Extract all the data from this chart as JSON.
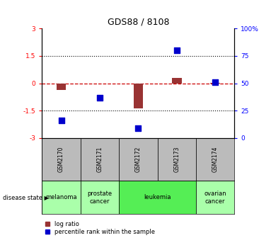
{
  "title": "GDS88 / 8108",
  "samples": [
    "GSM2170",
    "GSM2171",
    "GSM2172",
    "GSM2173",
    "GSM2174"
  ],
  "log_ratio": [
    -0.35,
    0.0,
    -1.38,
    0.28,
    0.03
  ],
  "percentile_rank": [
    16,
    37,
    9,
    80,
    51
  ],
  "disease_state": [
    "melanoma",
    "prostate cancer",
    "leukemia",
    "leukemia",
    "ovarian cancer"
  ],
  "disease_colors": {
    "melanoma": "#aaffaa",
    "prostate cancer": "#aaffaa",
    "leukemia": "#55ee55",
    "ovarian cancer": "#aaffaa"
  },
  "ylim_left": [
    -3,
    3
  ],
  "ylim_right": [
    0,
    100
  ],
  "yticks_left": [
    -3,
    -1.5,
    0,
    1.5,
    3
  ],
  "ytick_labels_left": [
    "-3",
    "-1.5",
    "0",
    "1.5",
    "3"
  ],
  "yticks_right": [
    0,
    25,
    50,
    75,
    100
  ],
  "ytick_labels_right": [
    "0",
    "25",
    "50",
    "75",
    "100%"
  ],
  "bar_color": "#993333",
  "dot_color": "#0000cc",
  "hline_color": "#cc0000",
  "grid_color": "black",
  "bar_width": 0.25,
  "dot_size": 40,
  "legend_labels": [
    "log ratio",
    "percentile rank within the sample"
  ],
  "legend_colors": [
    "#993333",
    "#0000cc"
  ],
  "disease_label": "disease state",
  "sample_bg": "#bbbbbb",
  "title_fontsize": 9,
  "tick_fontsize": 6.5,
  "sample_fontsize": 5.5,
  "disease_fontsize": 6.0,
  "legend_fontsize": 6.0
}
